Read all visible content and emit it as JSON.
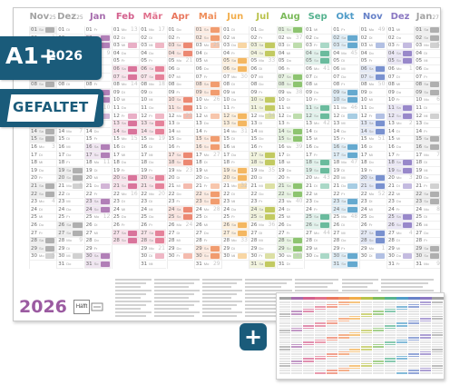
{
  "poster": {
    "year_label": "2026",
    "brand": "Häfft",
    "months": [
      {
        "name": "Nov",
        "year": "25",
        "color": "#a3a3a3",
        "weekday_first": 6,
        "days": 30
      },
      {
        "name": "Dez",
        "year": "25",
        "color": "#a3a3a3",
        "weekday_first": 1,
        "days": 31
      },
      {
        "name": "Jan",
        "year": "",
        "color": "#a66cad",
        "weekday_first": 4,
        "days": 31
      },
      {
        "name": "Feb",
        "year": "",
        "color": "#d3608d",
        "weekday_first": 0,
        "days": 28
      },
      {
        "name": "Mär",
        "year": "",
        "color": "#e0708c",
        "weekday_first": 0,
        "days": 31
      },
      {
        "name": "Apr",
        "year": "",
        "color": "#e9775e",
        "weekday_first": 3,
        "days": 30
      },
      {
        "name": "Mai",
        "year": "",
        "color": "#ef8e5a",
        "weekday_first": 5,
        "days": 31
      },
      {
        "name": "Jun",
        "year": "",
        "color": "#f2ad4a",
        "weekday_first": 1,
        "days": 30
      },
      {
        "name": "Jul",
        "year": "",
        "color": "#b9c24a",
        "weekday_first": 3,
        "days": 31
      },
      {
        "name": "Aug",
        "year": "",
        "color": "#7dbb5c",
        "weekday_first": 6,
        "days": 31
      },
      {
        "name": "Sep",
        "year": "",
        "color": "#55b28f",
        "weekday_first": 2,
        "days": 30
      },
      {
        "name": "Okt",
        "year": "",
        "color": "#4f9cc8",
        "weekday_first": 4,
        "days": 31
      },
      {
        "name": "Nov",
        "year": "",
        "color": "#6681c8",
        "weekday_first": 0,
        "days": 30
      },
      {
        "name": "Dez",
        "year": "",
        "color": "#8a77c2",
        "weekday_first": 2,
        "days": 31
      },
      {
        "name": "Jan",
        "year": "27",
        "color": "#a3a3a3",
        "weekday_first": 5,
        "days": 31
      }
    ],
    "weekday_abbr": [
      "Mo",
      "Di",
      "Mi",
      "Do",
      "Fr",
      "Sa",
      "So"
    ]
  },
  "badges": {
    "size_label": "A1+",
    "size_year": "2026",
    "fold_label": "GEFALTET"
  },
  "plus_symbol": "+",
  "mini_poster": {
    "colors": [
      "#a3a3a3",
      "#a66cad",
      "#d3608d",
      "#e0708c",
      "#e9775e",
      "#ef8e5a",
      "#f2ad4a",
      "#b9c24a",
      "#7dbb5c",
      "#55b28f",
      "#4f9cc8",
      "#6681c8",
      "#8a77c2",
      "#a3a3a3"
    ]
  }
}
